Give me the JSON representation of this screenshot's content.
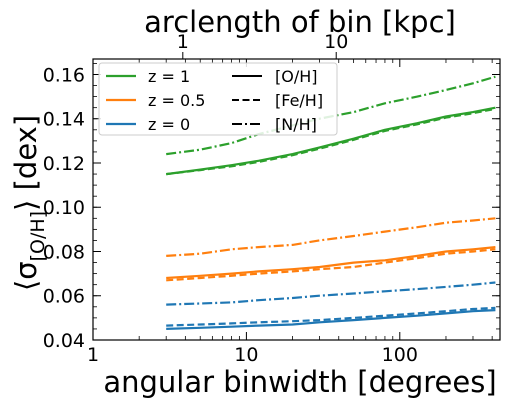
{
  "chart_data": {
    "type": "line",
    "title": "",
    "xlabel": "angular binwidth [degrees]",
    "ylabel_main": "⟨σ",
    "ylabel_sub": "[O/H]",
    "ylabel_tail": "⟩ [dex]",
    "top_xlabel": "arclength of bin [kpc]",
    "x_scale": "log",
    "xlim": [
      1,
      450
    ],
    "ylim": [
      0.04,
      0.167
    ],
    "x_ticks": [
      1,
      10,
      100
    ],
    "x_tick_labels": [
      "1",
      "10",
      "100"
    ],
    "y_ticks": [
      0.04,
      0.06,
      0.08,
      0.1,
      0.12,
      0.14,
      0.16
    ],
    "y_tick_labels": [
      "0.04",
      "0.06",
      "0.08",
      "0.10",
      "0.12",
      "0.14",
      "0.16"
    ],
    "top_ticks_deg": [
      3.85,
      38.5
    ],
    "top_tick_labels": [
      "1",
      "10"
    ],
    "legend_placement": "top-left",
    "legend_colors": [
      {
        "label": "z = 1",
        "color": "#2ca02c"
      },
      {
        "label": "z = 0.5",
        "color": "#ff7f0e"
      },
      {
        "label": "z = 0",
        "color": "#1f77b4"
      }
    ],
    "legend_styles": [
      {
        "label": "[O/H]",
        "dash": "solid"
      },
      {
        "label": "[Fe/H]",
        "dash": "dashed"
      },
      {
        "label": "[N/H]",
        "dash": "dashdot"
      }
    ],
    "x": [
      3,
      5,
      8,
      12,
      20,
      30,
      50,
      80,
      130,
      200,
      300,
      420
    ],
    "series": [
      {
        "color": "#2ca02c",
        "dash": "solid",
        "values": [
          0.115,
          0.117,
          0.119,
          0.121,
          0.124,
          0.127,
          0.131,
          0.135,
          0.138,
          0.141,
          0.143,
          0.145
        ]
      },
      {
        "color": "#2ca02c",
        "dash": "dashed",
        "values": [
          0.115,
          0.1168,
          0.1185,
          0.1205,
          0.1235,
          0.1265,
          0.1305,
          0.1345,
          0.1375,
          0.1405,
          0.1425,
          0.1445
        ]
      },
      {
        "color": "#2ca02c",
        "dash": "dashdot",
        "values": [
          0.124,
          0.126,
          0.129,
          0.133,
          0.137,
          0.14,
          0.143,
          0.147,
          0.15,
          0.153,
          0.156,
          0.159
        ]
      },
      {
        "color": "#ff7f0e",
        "dash": "solid",
        "values": [
          0.068,
          0.069,
          0.07,
          0.071,
          0.072,
          0.073,
          0.075,
          0.076,
          0.078,
          0.08,
          0.081,
          0.082
        ]
      },
      {
        "color": "#ff7f0e",
        "dash": "dashed",
        "values": [
          0.067,
          0.068,
          0.069,
          0.07,
          0.071,
          0.072,
          0.073,
          0.075,
          0.077,
          0.079,
          0.08,
          0.081
        ]
      },
      {
        "color": "#ff7f0e",
        "dash": "dashdot",
        "values": [
          0.078,
          0.079,
          0.081,
          0.082,
          0.083,
          0.085,
          0.087,
          0.089,
          0.091,
          0.093,
          0.094,
          0.095
        ]
      },
      {
        "color": "#1f77b4",
        "dash": "solid",
        "values": [
          0.045,
          0.0455,
          0.046,
          0.0465,
          0.047,
          0.048,
          0.049,
          0.05,
          0.051,
          0.052,
          0.053,
          0.0535
        ]
      },
      {
        "color": "#1f77b4",
        "dash": "dashed",
        "values": [
          0.0465,
          0.047,
          0.0475,
          0.048,
          0.0485,
          0.049,
          0.05,
          0.051,
          0.052,
          0.053,
          0.054,
          0.0545
        ]
      },
      {
        "color": "#1f77b4",
        "dash": "dashdot",
        "values": [
          0.056,
          0.0565,
          0.057,
          0.058,
          0.059,
          0.06,
          0.061,
          0.062,
          0.063,
          0.064,
          0.065,
          0.066
        ]
      }
    ]
  }
}
